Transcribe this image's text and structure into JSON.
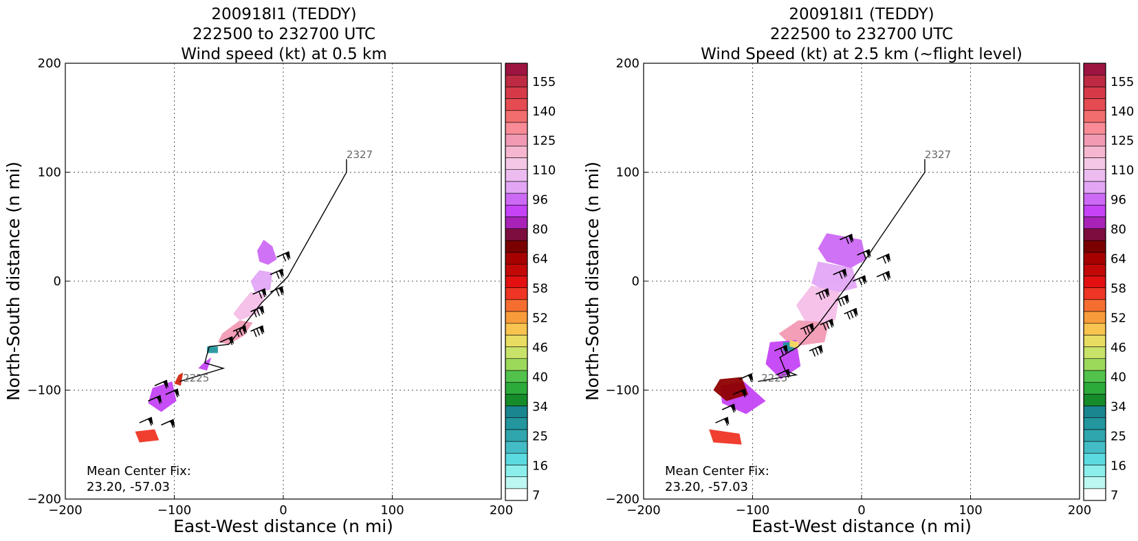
{
  "chart_data": [
    {
      "type": "heatmap",
      "title_lines": [
        "200918I1 (TEDDY)",
        "222500 to 232700 UTC",
        "Wind speed (kt) at 0.5 km"
      ],
      "xlabel": "East-West distance (n mi)",
      "ylabel": "North-South distance (n mi)",
      "xlim": [
        -200,
        200
      ],
      "ylim": [
        -200,
        200
      ],
      "xticks": [
        -200,
        -100,
        0,
        100,
        200
      ],
      "yticks": [
        -200,
        -100,
        0,
        100,
        200
      ],
      "xtick_labels": [
        "−200",
        "−100",
        "0",
        "100",
        "200"
      ],
      "ytick_labels": [
        "−200",
        "−100",
        "0",
        "100",
        "200"
      ],
      "grid": true,
      "annotation_lines": [
        "Mean Center Fix:",
        "23.20, -57.03"
      ],
      "track_labels": [
        {
          "text": "2327",
          "x": 58,
          "y": 113
        },
        {
          "text": "2225",
          "x": -92,
          "y": -92
        }
      ],
      "track": [
        [
          58,
          112
        ],
        [
          58,
          100
        ],
        [
          4,
          4
        ],
        [
          -20,
          -20
        ],
        [
          -50,
          -58
        ],
        [
          -68,
          -60
        ],
        [
          -72,
          -75
        ],
        [
          -55,
          -80
        ],
        [
          -95,
          -92
        ]
      ],
      "wind_patches": [
        {
          "color": "#cd6af5",
          "points": [
            [
              -18,
              38
            ],
            [
              -10,
              32
            ],
            [
              -6,
              20
            ],
            [
              -14,
              15
            ],
            [
              -22,
              18
            ],
            [
              -24,
              28
            ]
          ]
        },
        {
          "color": "#e3a6f5",
          "points": [
            [
              -22,
              10
            ],
            [
              -10,
              8
            ],
            [
              -12,
              -8
            ],
            [
              -26,
              -10
            ],
            [
              -30,
              0
            ]
          ]
        },
        {
          "color": "#f5bfe8",
          "points": [
            [
              -30,
              -10
            ],
            [
              -16,
              -12
            ],
            [
              -24,
              -30
            ],
            [
              -40,
              -36
            ],
            [
              -46,
              -30
            ],
            [
              -40,
              -22
            ]
          ]
        },
        {
          "color": "#f29ab4",
          "points": [
            [
              -40,
              -36
            ],
            [
              -28,
              -38
            ],
            [
              -36,
              -50
            ],
            [
              -50,
              -58
            ],
            [
              -60,
              -56
            ],
            [
              -56,
              -48
            ]
          ]
        },
        {
          "color": "#c443f5",
          "points": [
            [
              -72,
              -74
            ],
            [
              -66,
              -70
            ],
            [
              -70,
              -82
            ],
            [
              -78,
              -80
            ]
          ]
        },
        {
          "color": "#23969e",
          "points": [
            [
              -70,
              -60
            ],
            [
              -60,
              -60
            ],
            [
              -60,
              -66
            ],
            [
              -70,
              -66
            ]
          ]
        },
        {
          "color": "#c443f5",
          "points": [
            [
              -120,
              -98
            ],
            [
              -102,
              -92
            ],
            [
              -98,
              -110
            ],
            [
              -112,
              -120
            ],
            [
              -124,
              -112
            ]
          ]
        },
        {
          "color": "#d02710",
          "points": [
            [
              -96,
              -86
            ],
            [
              -92,
              -84
            ],
            [
              -94,
              -96
            ],
            [
              -100,
              -94
            ]
          ]
        },
        {
          "color": "#ef3524",
          "points": [
            [
              -136,
              -138
            ],
            [
              -118,
              -136
            ],
            [
              -114,
              -146
            ],
            [
              -132,
              -148
            ]
          ]
        }
      ],
      "barbs": [
        {
          "x": -6,
          "y": 22,
          "speed": 80
        },
        {
          "x": -12,
          "y": 6,
          "speed": 80
        },
        {
          "x": -28,
          "y": -12,
          "speed": 85
        },
        {
          "x": -12,
          "y": -10,
          "speed": 85
        },
        {
          "x": -30,
          "y": -28,
          "speed": 90
        },
        {
          "x": -46,
          "y": -46,
          "speed": 95
        },
        {
          "x": -30,
          "y": -46,
          "speed": 90
        },
        {
          "x": -58,
          "y": -56,
          "speed": 70
        },
        {
          "x": -108,
          "y": -104,
          "speed": 70
        },
        {
          "x": -118,
          "y": -96,
          "speed": 70
        },
        {
          "x": -124,
          "y": -110,
          "speed": 65
        },
        {
          "x": -132,
          "y": -130,
          "speed": 55
        },
        {
          "x": -112,
          "y": -132,
          "speed": 55
        }
      ]
    },
    {
      "type": "heatmap",
      "title_lines": [
        "200918I1 (TEDDY)",
        "222500 to 232700 UTC",
        "Wind Speed (kt) at 2.5 km (~flight level)"
      ],
      "xlabel": "East-West distance (n mi)",
      "ylabel": "North-South distance (n mi)",
      "xlim": [
        -200,
        200
      ],
      "ylim": [
        -200,
        200
      ],
      "xticks": [
        -200,
        -100,
        0,
        100,
        200
      ],
      "yticks": [
        -200,
        -100,
        0,
        100,
        200
      ],
      "xtick_labels": [
        "−200",
        "−100",
        "0",
        "100",
        "200"
      ],
      "ytick_labels": [
        "−200",
        "−100",
        "0",
        "100",
        "200"
      ],
      "grid": true,
      "annotation_lines": [
        "Mean Center Fix:",
        "23.20, -57.03"
      ],
      "track_labels": [
        {
          "text": "2327",
          "x": 58,
          "y": 113
        },
        {
          "text": "2225",
          "x": -92,
          "y": -92
        }
      ],
      "track": [
        [
          58,
          112
        ],
        [
          58,
          100
        ],
        [
          -10,
          0
        ],
        [
          -40,
          -40
        ],
        [
          -58,
          -60
        ],
        [
          -75,
          -70
        ],
        [
          -70,
          -82
        ],
        [
          -60,
          -86
        ],
        [
          -95,
          -92
        ]
      ],
      "wind_patches": [
        {
          "color": "#cd6af5",
          "points": [
            [
              -32,
              44
            ],
            [
              0,
              38
            ],
            [
              4,
              20
            ],
            [
              -10,
              12
            ],
            [
              -32,
              18
            ],
            [
              -40,
              30
            ]
          ]
        },
        {
          "color": "#e3a6f5",
          "points": [
            [
              -40,
              18
            ],
            [
              -8,
              12
            ],
            [
              -4,
              -6
            ],
            [
              -28,
              -12
            ],
            [
              -46,
              -2
            ]
          ]
        },
        {
          "color": "#f5bfe8",
          "points": [
            [
              -46,
              -4
            ],
            [
              -20,
              -10
            ],
            [
              -24,
              -36
            ],
            [
              -50,
              -40
            ],
            [
              -60,
              -22
            ]
          ]
        },
        {
          "color": "#f29ab4",
          "points": [
            [
              -58,
              -36
            ],
            [
              -30,
              -38
            ],
            [
              -34,
              -56
            ],
            [
              -64,
              -60
            ],
            [
              -76,
              -48
            ]
          ]
        },
        {
          "color": "#c443f5",
          "points": [
            [
              -84,
              -56
            ],
            [
              -60,
              -54
            ],
            [
              -56,
              -78
            ],
            [
              -74,
              -90
            ],
            [
              -88,
              -76
            ]
          ]
        },
        {
          "color": "#23969e",
          "points": [
            [
              -72,
              -56
            ],
            [
              -62,
              -56
            ],
            [
              -62,
              -64
            ],
            [
              -72,
              -64
            ]
          ]
        },
        {
          "color": "#f8dc5e",
          "points": [
            [
              -66,
              -54
            ],
            [
              -58,
              -56
            ],
            [
              -58,
              -62
            ],
            [
              -66,
              -60
            ]
          ]
        },
        {
          "color": "#c443f5",
          "points": [
            [
              -130,
              -96
            ],
            [
              -108,
              -92
            ],
            [
              -88,
              -110
            ],
            [
              -106,
              -122
            ],
            [
              -128,
              -112
            ]
          ]
        },
        {
          "color": "#8f0000",
          "points": [
            [
              -130,
              -90
            ],
            [
              -110,
              -88
            ],
            [
              -104,
              -104
            ],
            [
              -124,
              -110
            ],
            [
              -136,
              -100
            ]
          ]
        },
        {
          "color": "#ef3524",
          "points": [
            [
              -140,
              -136
            ],
            [
              -112,
              -140
            ],
            [
              -110,
              -150
            ],
            [
              -136,
              -148
            ]
          ]
        }
      ],
      "barbs": [
        {
          "x": -20,
          "y": 38,
          "speed": 80
        },
        {
          "x": -4,
          "y": 24,
          "speed": 80
        },
        {
          "x": 14,
          "y": 20,
          "speed": 75
        },
        {
          "x": 14,
          "y": 4,
          "speed": 75
        },
        {
          "x": -8,
          "y": 0,
          "speed": 80
        },
        {
          "x": -26,
          "y": 6,
          "speed": 85
        },
        {
          "x": -24,
          "y": -18,
          "speed": 90
        },
        {
          "x": -42,
          "y": -12,
          "speed": 90
        },
        {
          "x": -16,
          "y": -30,
          "speed": 95
        },
        {
          "x": -38,
          "y": -40,
          "speed": 95
        },
        {
          "x": -56,
          "y": -44,
          "speed": 95
        },
        {
          "x": -48,
          "y": -64,
          "speed": 90
        },
        {
          "x": -80,
          "y": -64,
          "speed": 80
        },
        {
          "x": -78,
          "y": -86,
          "speed": 70
        },
        {
          "x": -112,
          "y": -90,
          "speed": 60
        },
        {
          "x": -118,
          "y": -104,
          "speed": 60
        },
        {
          "x": -128,
          "y": -118,
          "speed": 55
        },
        {
          "x": -134,
          "y": -130,
          "speed": 55
        }
      ]
    }
  ],
  "colorbar": {
    "colors": [
      "#ffffff",
      "#bdf7f2",
      "#8beeeb",
      "#5bdbe0",
      "#44bcc5",
      "#30a5ad",
      "#23969e",
      "#1a8690",
      "#158b2a",
      "#2caa3a",
      "#52c24c",
      "#9cd95a",
      "#c8e26a",
      "#e8dc62",
      "#f8c34f",
      "#f89b3b",
      "#f56e30",
      "#ef3524",
      "#e21010",
      "#c30808",
      "#a60000",
      "#7a0000",
      "#7d0d3e",
      "#a822b7",
      "#c443f5",
      "#cd6af5",
      "#e3a6f5",
      "#ecbcf0",
      "#f5c7e6",
      "#f7b6cf",
      "#f29ab4",
      "#f88b96",
      "#f26d6d",
      "#e54c52",
      "#d63a48",
      "#bd2a42",
      "#9e1440"
    ],
    "tick_labels": [
      "7",
      "16",
      "25",
      "34",
      "40",
      "46",
      "52",
      "58",
      "64",
      "80",
      "96",
      "110",
      "125",
      "140",
      "155"
    ]
  }
}
